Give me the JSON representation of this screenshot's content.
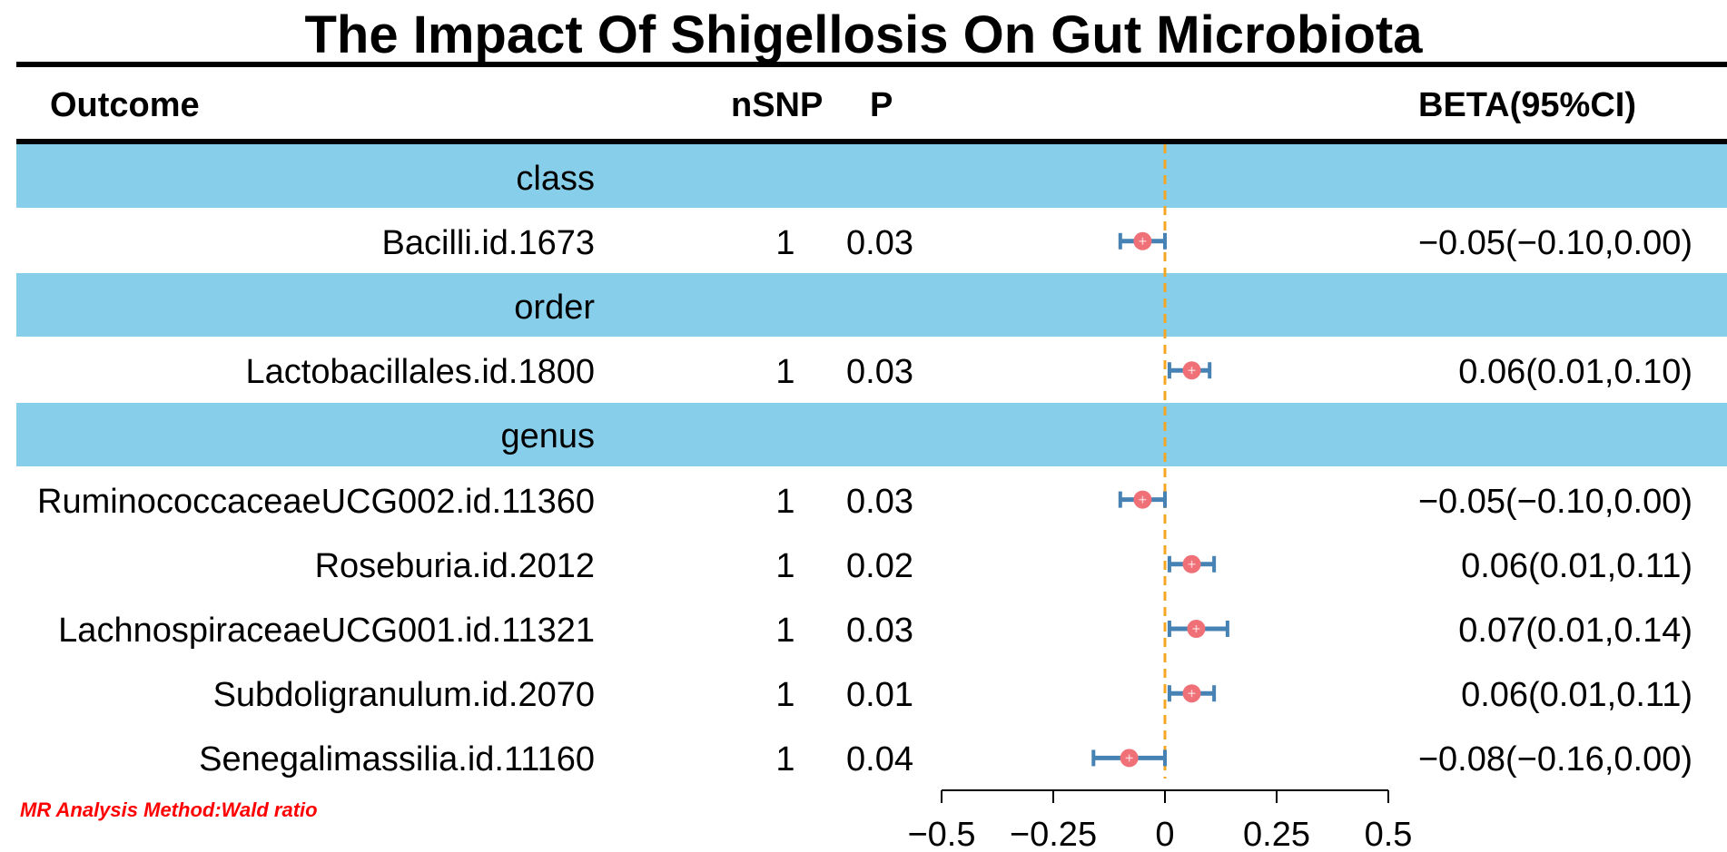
{
  "title": "The Impact Of Shigellosis On Gut Microbiota",
  "headers": {
    "outcome": "Outcome",
    "nsnp": "nSNP",
    "p": "P",
    "beta": "BETA(95%CI)"
  },
  "colors": {
    "band": "#87CEEB",
    "point": "#F07078",
    "errorbar": "#4682B4",
    "reference_line": "#F5A623",
    "footnote": "#FF0000"
  },
  "rows": [
    {
      "type": "group",
      "label": "class"
    },
    {
      "type": "item",
      "outcome": "Bacilli.id.1673",
      "nsnp": "1",
      "p": "0.03",
      "beta": "−0.05(−0.10,0.00)"
    },
    {
      "type": "group",
      "label": "order"
    },
    {
      "type": "item",
      "outcome": "Lactobacillales.id.1800",
      "nsnp": "1",
      "p": "0.03",
      "beta": "0.06(0.01,0.10)"
    },
    {
      "type": "group",
      "label": "genus"
    },
    {
      "type": "item",
      "outcome": "RuminococcaceaeUCG002.id.11360",
      "nsnp": "1",
      "p": "0.03",
      "beta": "−0.05(−0.10,0.00)"
    },
    {
      "type": "item",
      "outcome": "Roseburia.id.2012",
      "nsnp": "1",
      "p": "0.02",
      "beta": "0.06(0.01,0.11)"
    },
    {
      "type": "item",
      "outcome": "LachnospiraceaeUCG001.id.11321",
      "nsnp": "1",
      "p": "0.03",
      "beta": "0.07(0.01,0.14)"
    },
    {
      "type": "item",
      "outcome": "Subdoligranulum.id.2070",
      "nsnp": "1",
      "p": "0.01",
      "beta": "0.06(0.01,0.11)"
    },
    {
      "type": "item",
      "outcome": "Senegalimassilia.id.11160",
      "nsnp": "1",
      "p": "0.04",
      "beta": "−0.08(−0.16,0.00)"
    }
  ],
  "footnote": "MR Analysis Method:Wald ratio",
  "chart_data": {
    "type": "scatter",
    "subtype": "forest",
    "title": "The Impact Of Shigellosis On Gut Microbiota",
    "categories": [
      "Bacilli.id.1673",
      "Lactobacillales.id.1800",
      "RuminococcaceaeUCG002.id.11360",
      "Roseburia.id.2012",
      "LachnospiraceaeUCG001.id.11321",
      "Subdoligranulum.id.2070",
      "Senegalimassilia.id.11160"
    ],
    "estimates": [
      -0.05,
      0.06,
      -0.05,
      0.06,
      0.07,
      0.06,
      -0.08
    ],
    "lower": [
      -0.1,
      0.01,
      -0.1,
      0.01,
      0.01,
      0.01,
      -0.16
    ],
    "upper": [
      0.0,
      0.1,
      0.0,
      0.11,
      0.14,
      0.11,
      0.0
    ],
    "reference": 0,
    "xlim": [
      -0.5,
      0.5
    ],
    "xticks": [
      -0.5,
      -0.25,
      0,
      0.25,
      0.5
    ],
    "xtick_labels": [
      "−0.5",
      "−0.25",
      "0",
      "0.25",
      "0.5"
    ],
    "xlabel": "",
    "ylabel": ""
  }
}
